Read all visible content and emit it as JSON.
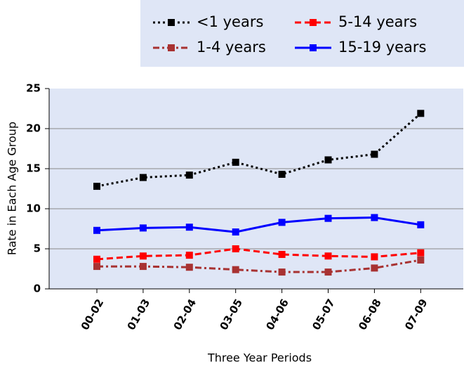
{
  "chart_data": {
    "type": "line",
    "x_label": "Three Year Periods",
    "y_label": "Rate in Each Age Group",
    "categories": [
      "00-02",
      "01-03",
      "02-04",
      "03-05",
      "04-06",
      "05-07",
      "06-08",
      "07-09"
    ],
    "series": [
      {
        "name": "<1 years",
        "color": "#000000",
        "dash": "dot",
        "values": [
          12.8,
          13.9,
          14.2,
          15.8,
          14.3,
          16.1,
          16.8,
          21.9
        ]
      },
      {
        "name": "1-4 years",
        "color": "#a83232",
        "dash": "dashdot",
        "values": [
          2.8,
          2.8,
          2.7,
          2.4,
          2.1,
          2.1,
          2.6,
          3.6
        ]
      },
      {
        "name": "5-14 years",
        "color": "#ff0000",
        "dash": "dash",
        "values": [
          3.7,
          4.1,
          4.2,
          5.0,
          4.3,
          4.1,
          4.0,
          4.5
        ]
      },
      {
        "name": "15-19 years",
        "color": "#0000ff",
        "dash": "solid",
        "values": [
          7.3,
          7.6,
          7.7,
          7.1,
          8.3,
          8.8,
          8.9,
          8.0
        ]
      }
    ],
    "ylim": [
      0,
      25
    ],
    "yticks": [
      0,
      5,
      10,
      15,
      20,
      25
    ],
    "grid": true,
    "legend": "top-right"
  }
}
